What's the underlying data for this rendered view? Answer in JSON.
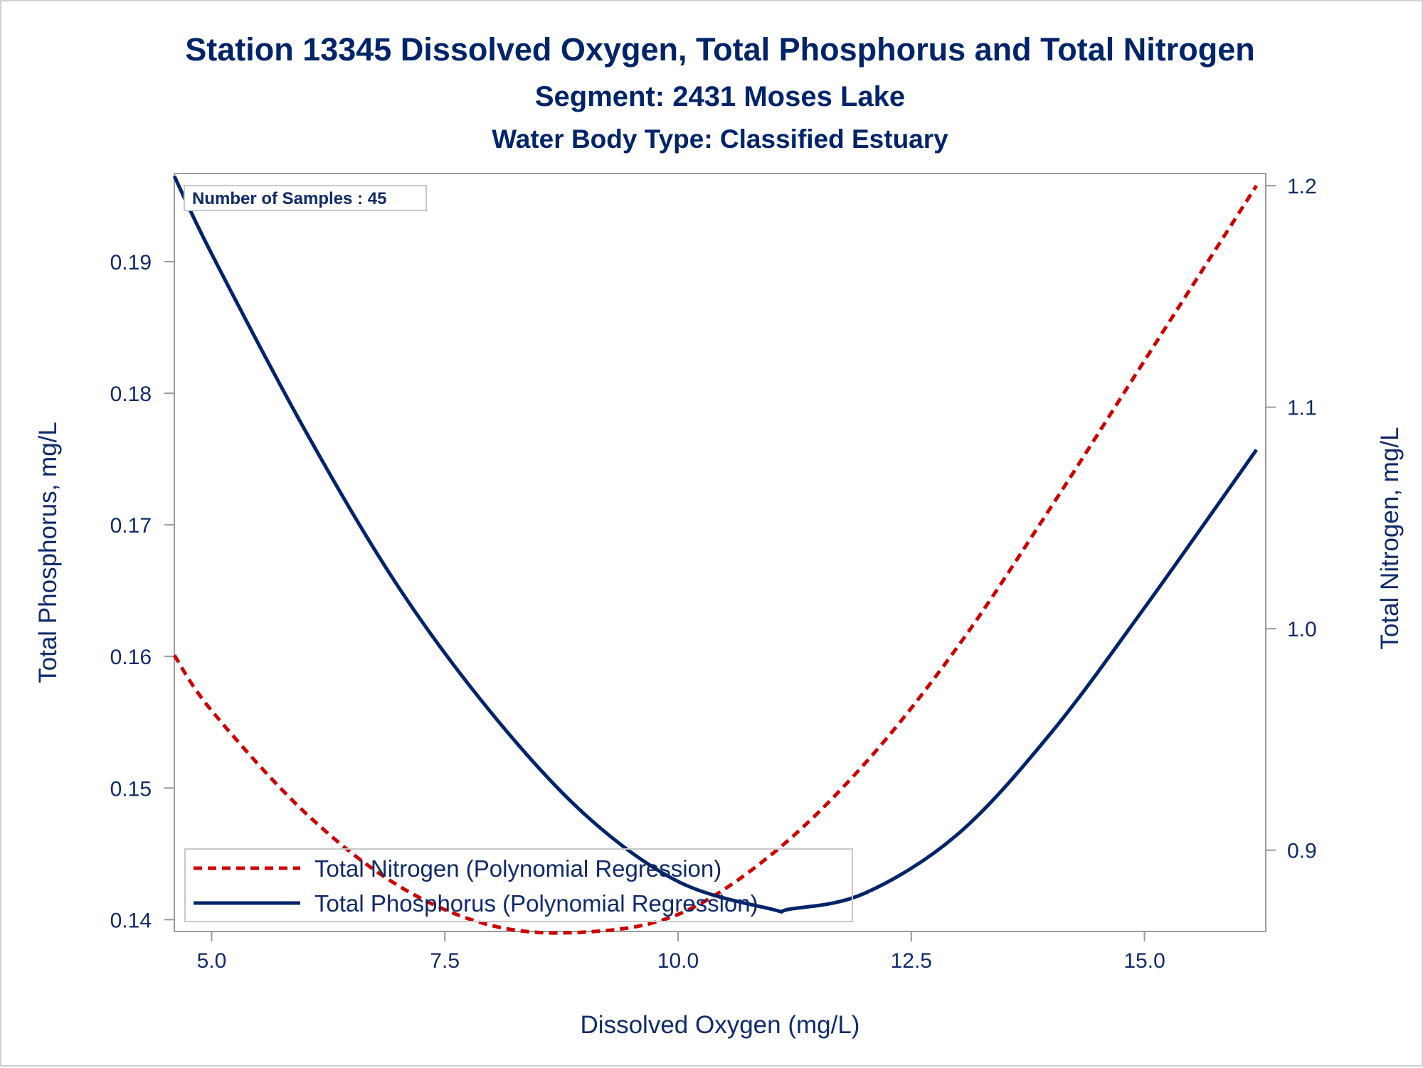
{
  "titles": {
    "line1": "Station 13345  Dissolved Oxygen, Total Phosphorus and Total Nitrogen",
    "line2": "Segment: 2431  Moses Lake",
    "line3": "Water Body Type: Classified Estuary"
  },
  "inset": {
    "label": "Number of Samples : 45"
  },
  "legend": {
    "items": [
      {
        "label": "Total Nitrogen (Polynomial Regression)",
        "color": "#cc0000",
        "style": "dashed"
      },
      {
        "label": "Total Phosphorus (Polynomial Regression)",
        "color": "#002469",
        "style": "solid"
      }
    ]
  },
  "chart_data": {
    "type": "line",
    "title": "Station 13345  Dissolved Oxygen, Total Phosphorus and Total Nitrogen",
    "xlabel": "Dissolved Oxygen (mg/L)",
    "ylabel": "Total Phosphorus, mg/L",
    "y2label": "Total Nitrogen, mg/L",
    "xlim": [
      4.6,
      16.3
    ],
    "ylim": [
      0.1391,
      0.1967
    ],
    "y2lim": [
      0.8633,
      1.2055
    ],
    "xticks": [
      "5.0",
      "7.5",
      "10.0",
      "12.5",
      "15.0"
    ],
    "yticks": [
      "0.14",
      "0.15",
      "0.16",
      "0.17",
      "0.18",
      "0.19"
    ],
    "y2ticks": [
      "0.9",
      "1.0",
      "1.1",
      "1.2"
    ],
    "grid": false,
    "legend_position": "bottom-left",
    "series": [
      {
        "name": "Total Nitrogen (Polynomial Regression)",
        "axis": "right",
        "color": "#cc0000",
        "style": "dashed",
        "x": [
          4.6,
          5.0,
          6.0,
          7.0,
          8.0,
          9.0,
          10.0,
          11.0,
          12.0,
          13.0,
          14.0,
          15.0,
          16.2
        ],
        "y": [
          0.988,
          0.963,
          0.917,
          0.884,
          0.866,
          0.863,
          0.871,
          0.898,
          0.939,
          0.992,
          1.055,
          1.121,
          1.2
        ]
      },
      {
        "name": "Total Phosphorus (Polynomial Regression)",
        "axis": "left",
        "color": "#002469",
        "style": "solid",
        "x": [
          4.6,
          5.0,
          6.0,
          7.0,
          8.0,
          9.0,
          10.0,
          11.0,
          11.2,
          12.0,
          13.0,
          14.0,
          15.0,
          16.2
        ],
        "y": [
          0.1965,
          0.1906,
          0.1772,
          0.1653,
          0.1557,
          0.148,
          0.1429,
          0.1408,
          0.1408,
          0.142,
          0.1465,
          0.1542,
          0.1637,
          0.1757
        ]
      }
    ]
  }
}
